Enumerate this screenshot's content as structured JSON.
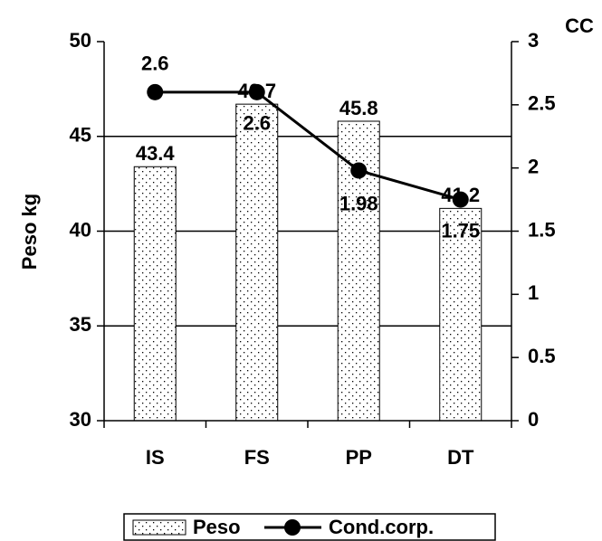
{
  "chart_data": {
    "type": "bar",
    "categories": [
      "IS",
      "FS",
      "PP",
      "DT"
    ],
    "series": [
      {
        "name": "Peso",
        "type": "bar",
        "color": "#ffffff",
        "values": [
          43.4,
          46.7,
          45.8,
          41.2
        ]
      },
      {
        "name": "Cond.corp.",
        "type": "line",
        "axis": "y2",
        "color": "#000000",
        "values": [
          2.6,
          2.6,
          1.98,
          1.75
        ]
      }
    ],
    "ylabel": "Peso kg",
    "y2label": "CC",
    "ylim": [
      30,
      50
    ],
    "yticks": [
      30,
      35,
      40,
      45,
      50
    ],
    "y2lim": [
      0,
      3
    ],
    "y2ticks": [
      0,
      0.5,
      1,
      1.5,
      2,
      2.5,
      3
    ],
    "grid": true,
    "legend": "bottom"
  }
}
